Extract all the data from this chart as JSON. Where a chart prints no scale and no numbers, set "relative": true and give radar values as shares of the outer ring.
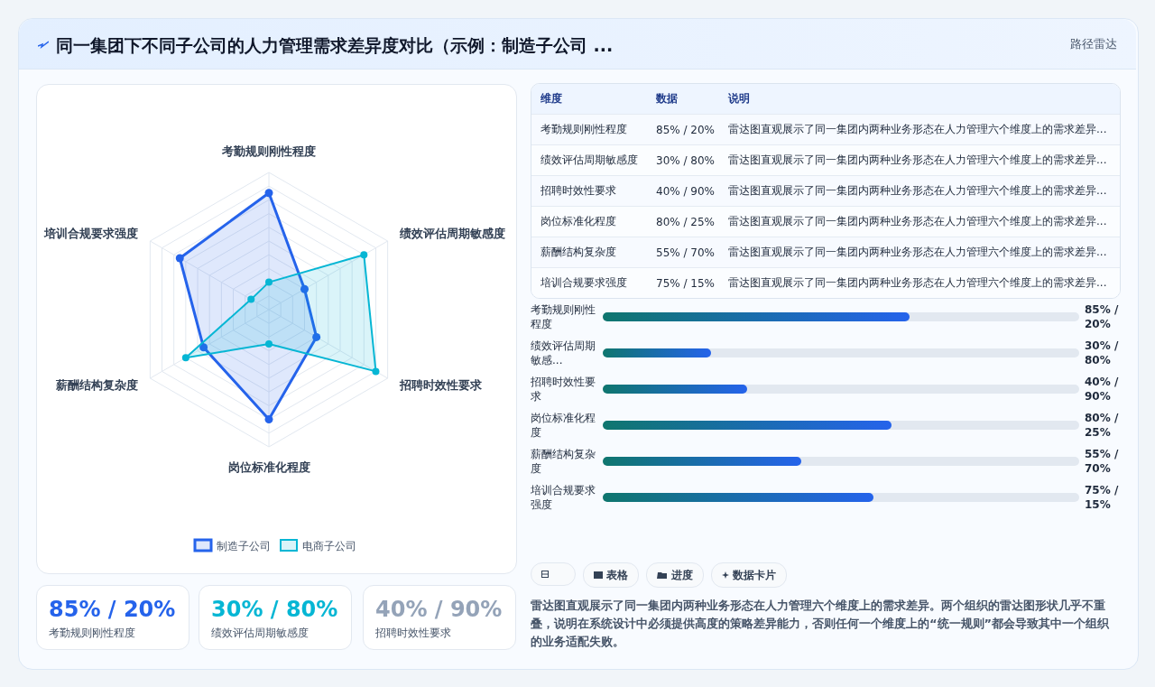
{
  "chart_data": [
    {
      "type": "other",
      "title": "同一集团下不同子公司的人力管理需求差异度对比（示例：制造子公司 ...",
      "subtitle": "路径雷达"
    },
    {
      "type": "radar",
      "categories": [
        "考勤规则刚性程度",
        "绩效评估周期敏感度",
        "招聘时效性要求",
        "岗位标准化程度",
        "薪酬结构复杂度",
        "培训合规要求强度"
      ],
      "relative": true,
      "grid": true,
      "legend": "bottom",
      "marker": "circle",
      "series": [
        {
          "name": "制造子公司",
          "color": "#2563eb",
          "values": [
            0.85,
            0.3,
            0.4,
            0.8,
            0.55,
            0.75
          ]
        },
        {
          "name": "电商子公司",
          "color": "#06b6d4",
          "values": [
            0.2,
            0.8,
            0.9,
            0.25,
            0.7,
            0.15
          ]
        }
      ]
    },
    {
      "type": "other",
      "categories": [
        "维度",
        "数据",
        "说明"
      ],
      "cell_labels": [
        [
          "考勤规则刚性程度",
          "85% / 20%",
          "雷达图直观展示了同一集团内两种业务形态在人力管理六个维度上的需求差异..."
        ],
        [
          "绩效评估周期敏感度",
          "30% / 80%",
          "雷达图直观展示了同一集团内两种业务形态在人力管理六个维度上的需求差异..."
        ],
        [
          "招聘时效性要求",
          "40% / 90%",
          "雷达图直观展示了同一集团内两种业务形态在人力管理六个维度上的需求差异..."
        ],
        [
          "岗位标准化程度",
          "80% / 25%",
          "雷达图直观展示了同一集团内两种业务形态在人力管理六个维度上的需求差异..."
        ],
        [
          "薪酬结构复杂度",
          "55% / 70%",
          "雷达图直观展示了同一集团内两种业务形态在人力管理六个维度上的需求差异..."
        ],
        [
          "培训合规要求强度",
          "75% / 15%",
          "雷达图直观展示了同一集团内两种业务形态在人力管理六个维度上的需求差异..."
        ]
      ]
    },
    {
      "type": "bar",
      "orientation": "horizontal",
      "xlim": [
        0,
        132
      ],
      "tick_labels": false,
      "color": "#2563eb",
      "categories": [
        "考勤规则刚性程度",
        "绩效评估周期敏感...",
        "招聘时效性要求",
        "岗位标准化程度",
        "薪酬结构复杂度",
        "培训合规要求强度"
      ],
      "values": [
        85,
        30,
        40,
        80,
        55,
        75
      ],
      "value_labels": [
        "85% / 20%",
        "30% / 80%",
        "40% / 90%",
        "80% / 25%",
        "55% / 70%",
        "75% / 15%"
      ]
    },
    {
      "type": "other",
      "categories": [
        "考勤规则刚性程度",
        "绩效评估周期敏感度",
        "招聘时效性要求"
      ],
      "value_labels": [
        "85% / 20%",
        "30% / 80%",
        "40% / 90%"
      ],
      "annotations": [
        "表格",
        "进度",
        "数据卡片",
        "雷达图直观展示了同一集团内两种业务形态在人力管理六个维度上的需求差异。两个组织的雷达图形状几乎不重叠，说明在系统设计中必须提供高度的策略差异能力，否则任何一个维度上的“统一规则”都会导致其中一个组织的业务适配失败。"
      ]
    }
  ]
}
